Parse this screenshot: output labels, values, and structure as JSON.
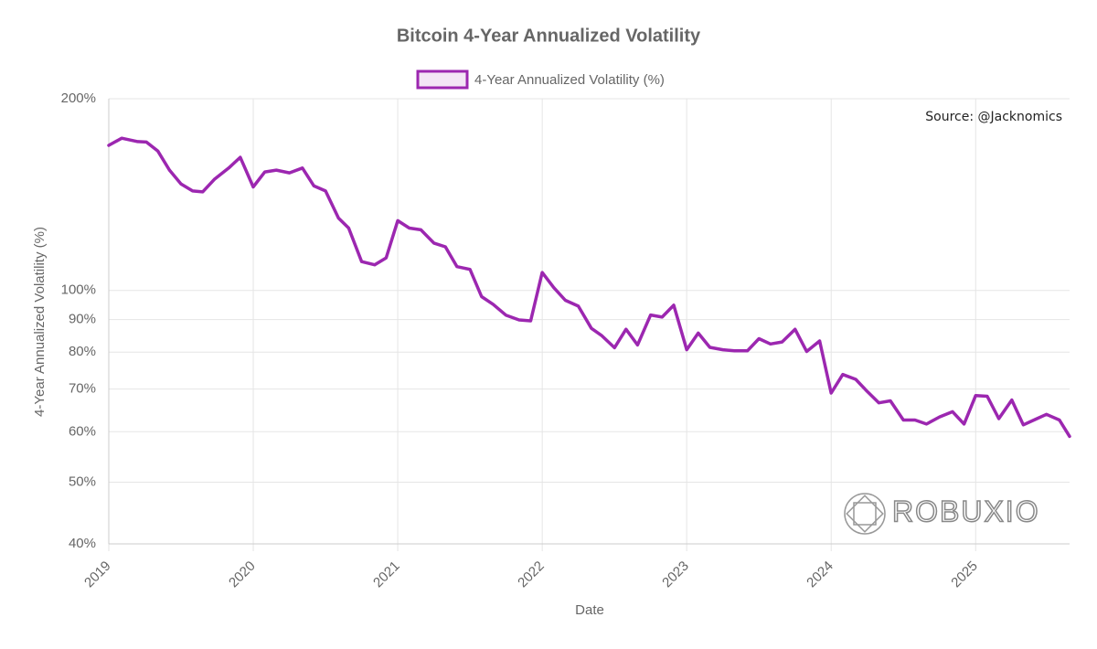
{
  "chart_data": {
    "type": "line",
    "title": "Bitcoin 4-Year Annualized Volatility",
    "xlabel": "Date",
    "ylabel": "4-Year Annualized Volatility (%)",
    "annotations": [
      "Source: @Jacknomics",
      "ROBUXIO"
    ],
    "log_y": true,
    "grid": true,
    "legend": "top",
    "xlim": [
      2019,
      2025.65
    ],
    "xticks": [
      2019,
      2020,
      2021,
      2022,
      2023,
      2024,
      2025
    ],
    "ylim": [
      40,
      200
    ],
    "yticks": [
      {
        "value": 40,
        "label": "40%"
      },
      {
        "value": 50,
        "label": "50%"
      },
      {
        "value": 60,
        "label": "60%"
      },
      {
        "value": 70,
        "label": "70%"
      },
      {
        "value": 80,
        "label": "80%"
      },
      {
        "value": 90,
        "label": "90%"
      },
      {
        "value": 100,
        "label": "100%"
      },
      {
        "value": 200,
        "label": "200%"
      }
    ],
    "x": [
      2019.0,
      2019.09,
      2019.2,
      2019.26,
      2019.34,
      2019.42,
      2019.5,
      2019.58,
      2019.65,
      2019.73,
      2019.83,
      2019.91,
      2020.0,
      2020.08,
      2020.16,
      2020.25,
      2020.34,
      2020.42,
      2020.5,
      2020.59,
      2020.66,
      2020.75,
      2020.84,
      2020.92,
      2021.0,
      2021.08,
      2021.16,
      2021.25,
      2021.33,
      2021.41,
      2021.5,
      2021.58,
      2021.66,
      2021.75,
      2021.84,
      2021.92,
      2022.0,
      2022.08,
      2022.16,
      2022.25,
      2022.34,
      2022.41,
      2022.5,
      2022.58,
      2022.66,
      2022.75,
      2022.83,
      2022.91,
      2023.0,
      2023.08,
      2023.16,
      2023.25,
      2023.33,
      2023.42,
      2023.5,
      2023.58,
      2023.66,
      2023.75,
      2023.83,
      2023.92,
      2024.0,
      2024.08,
      2024.17,
      2024.25,
      2024.33,
      2024.41,
      2024.5,
      2024.58,
      2024.66,
      2024.75,
      2024.84,
      2024.92,
      2025.0,
      2025.08,
      2025.16,
      2025.25,
      2025.33,
      2025.41,
      2025.49,
      2025.58,
      2025.65
    ],
    "series": [
      {
        "name": "4-Year Annualized Volatility (%)",
        "color": "#9c27b0",
        "values": [
          169,
          173.4,
          171.3,
          171,
          165.5,
          154.5,
          147,
          143.3,
          142.8,
          149.4,
          155.7,
          161.8,
          145.4,
          153.5,
          154.5,
          153,
          155.7,
          145.9,
          143.3,
          129.9,
          125.3,
          111,
          109.7,
          112.5,
          128.7,
          125.3,
          124.5,
          118.7,
          117.1,
          109,
          107.9,
          97.8,
          95.1,
          91.4,
          89.9,
          89.6,
          106.7,
          101,
          96.5,
          94.5,
          87.2,
          85,
          81.3,
          86.9,
          82.1,
          91.5,
          90.8,
          94.8,
          80.7,
          85.7,
          81.4,
          80.7,
          80.4,
          80.4,
          84,
          82.4,
          83,
          86.9,
          80.2,
          83.3,
          69,
          73.8,
          72.5,
          69.4,
          66.6,
          67.1,
          62.6,
          62.6,
          61.7,
          63.3,
          64.5,
          61.7,
          68.4,
          68.2,
          62.9,
          67.3,
          61.5,
          62.7,
          63.9,
          62.6,
          59
        ]
      }
    ]
  }
}
